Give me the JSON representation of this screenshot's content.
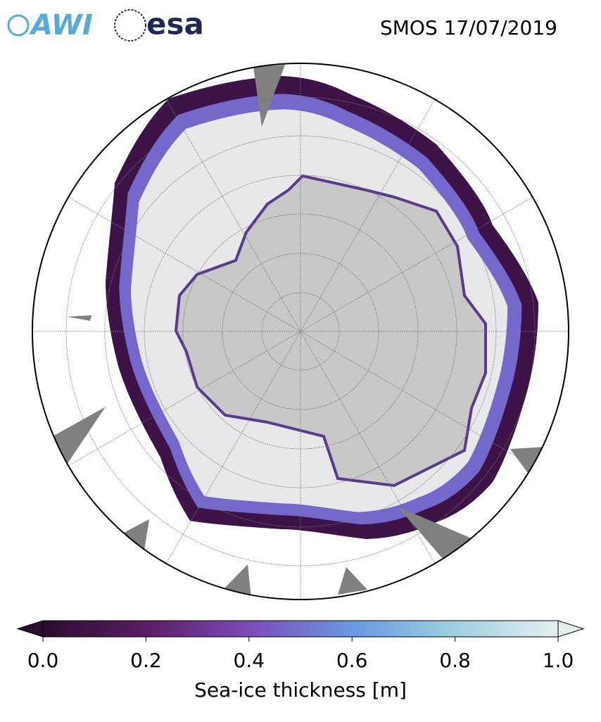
{
  "header": {
    "logos": [
      "AWI",
      "esa"
    ],
    "title": "SMOS 17/07/2019"
  },
  "colorbar": {
    "label": "Sea-ice thickness [m]",
    "lim": [
      0,
      1
    ],
    "ticks": [
      {
        "value": 0,
        "label": "0.0"
      },
      {
        "value": 0.2,
        "label": "0.2"
      },
      {
        "value": 0.4,
        "label": "0.4"
      },
      {
        "value": 0.6,
        "label": "0.6"
      },
      {
        "value": 0.8,
        "label": "0.8"
      },
      {
        "value": 1,
        "label": "1.0"
      }
    ],
    "colors": [
      "#2b0d2e",
      "#5a1c63",
      "#7d4bb8",
      "#6a98e2",
      "#9fd0e0",
      "#e4eeee"
    ]
  }
}
